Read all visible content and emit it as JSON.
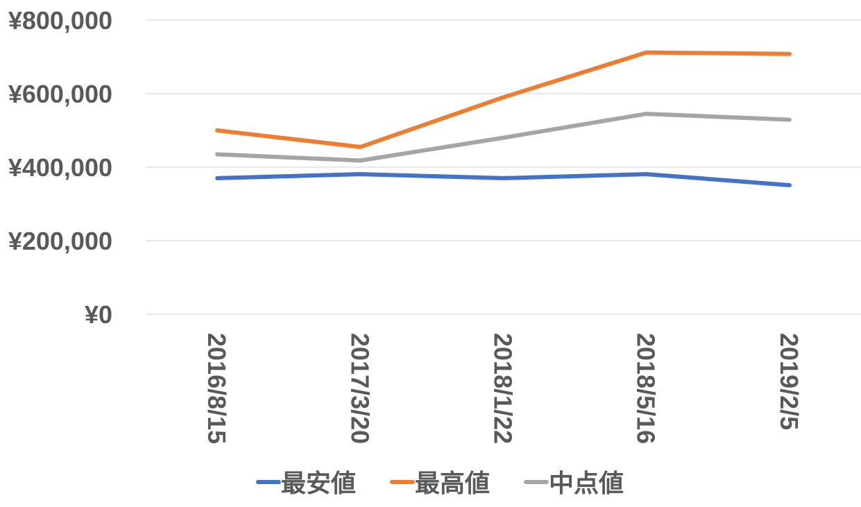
{
  "chart_data": {
    "type": "line",
    "categories": [
      "2016/8/15",
      "2017/3/20",
      "2018/1/22",
      "2018/5/16",
      "2019/2/5"
    ],
    "y_tick_labels": [
      "¥0",
      "¥200,000",
      "¥400,000",
      "¥600,000",
      "¥800,000"
    ],
    "y_ticks": [
      0,
      200000,
      400000,
      600000,
      800000
    ],
    "ylim": [
      0,
      800000
    ],
    "grid": true,
    "legend_position": "bottom",
    "series": [
      {
        "name": "最安値",
        "color": "#4472c4",
        "values": [
          370000,
          381000,
          370000,
          381000,
          351000
        ]
      },
      {
        "name": "最高値",
        "color": "#ed7d31",
        "values": [
          500000,
          455000,
          590000,
          712000,
          708000
        ]
      },
      {
        "name": "中点値",
        "color": "#a5a5a5",
        "values": [
          435000,
          418000,
          480000,
          545000,
          529000
        ]
      }
    ]
  }
}
